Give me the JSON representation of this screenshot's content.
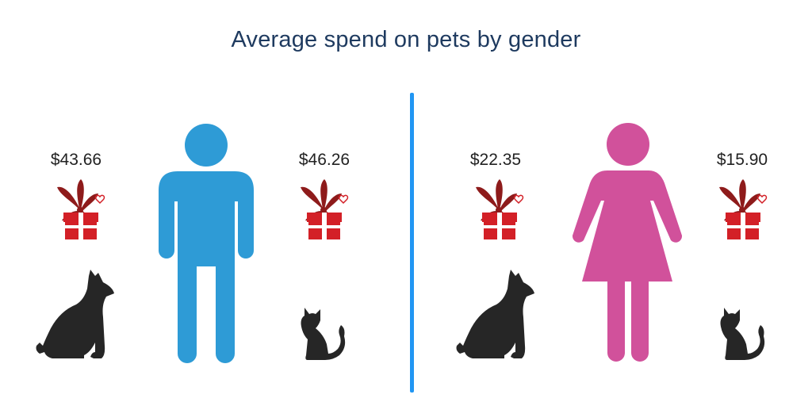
{
  "title": "Average spend on pets by gender",
  "colors": {
    "title": "#1e3a5f",
    "male": "#2e9bd6",
    "female": "#d1519b",
    "divider": "#2196f3",
    "gift_red": "#d32027",
    "ribbon": "#8e1b1b",
    "pet": "#262626"
  },
  "chart_data": {
    "type": "table",
    "title": "Average spend on pets by gender",
    "groups": [
      "male",
      "female"
    ],
    "pets": [
      "dog",
      "cat"
    ],
    "values": [
      {
        "group": "male",
        "pet": "dog",
        "value": 43.66,
        "label": "$43.66"
      },
      {
        "group": "male",
        "pet": "cat",
        "value": 46.26,
        "label": "$46.26"
      },
      {
        "group": "female",
        "pet": "dog",
        "value": 22.35,
        "label": "$22.35"
      },
      {
        "group": "female",
        "pet": "cat",
        "value": 15.9,
        "label": "$15.90"
      }
    ]
  },
  "icons": [
    "male-figure-icon",
    "female-figure-icon",
    "gift-icon",
    "dog-icon",
    "cat-icon"
  ]
}
